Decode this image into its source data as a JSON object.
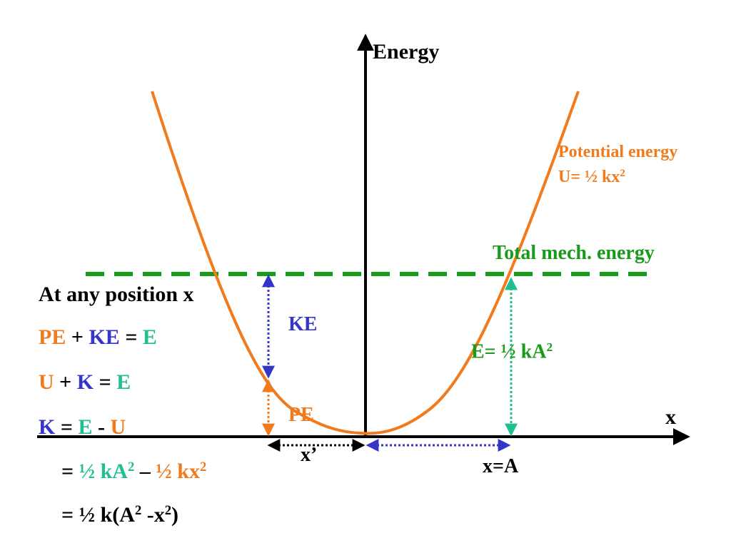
{
  "axis": {
    "y_label": "Energy",
    "x_label": "x"
  },
  "curve": {
    "name_line1": "Potential energy",
    "name_line2_prefix": "U= ",
    "name_line2_expr": "½ kx",
    "name_line2_exp": "2"
  },
  "total": {
    "label": "Total mech. energy"
  },
  "markers": {
    "ke": "KE",
    "pe": "PE",
    "x_prime": "x’",
    "x_eq_a": "x=A",
    "energy_eq_main": "E= ½ kA",
    "energy_eq_exp": "2"
  },
  "equations": {
    "heading": "At any position x",
    "line1": {
      "a": "PE",
      "op1": " + ",
      "b": "KE",
      "op2": " = ",
      "c": "E"
    },
    "line2": {
      "a": "U",
      "op1": " + ",
      "b": "K",
      "op2": " = ",
      "c": "E"
    },
    "line3": {
      "a": "K",
      "op1": " = ",
      "b": "E",
      "op2": " - ",
      "c": "U"
    },
    "line4": {
      "eq": "= ",
      "a": "½ kA",
      "a_exp": "2",
      "minus": " – ",
      "b": "½ kx",
      "b_exp": "2"
    },
    "line5": {
      "text": "= ½ k(A",
      "exp1": "2",
      "mid": " -x",
      "exp2": "2",
      "end": ")"
    }
  },
  "colors": {
    "curve": "#f07a1c",
    "total": "#1a9a1a",
    "ke": "#3535c8",
    "energy": "#1fbf8f",
    "axis": "#000000"
  }
}
